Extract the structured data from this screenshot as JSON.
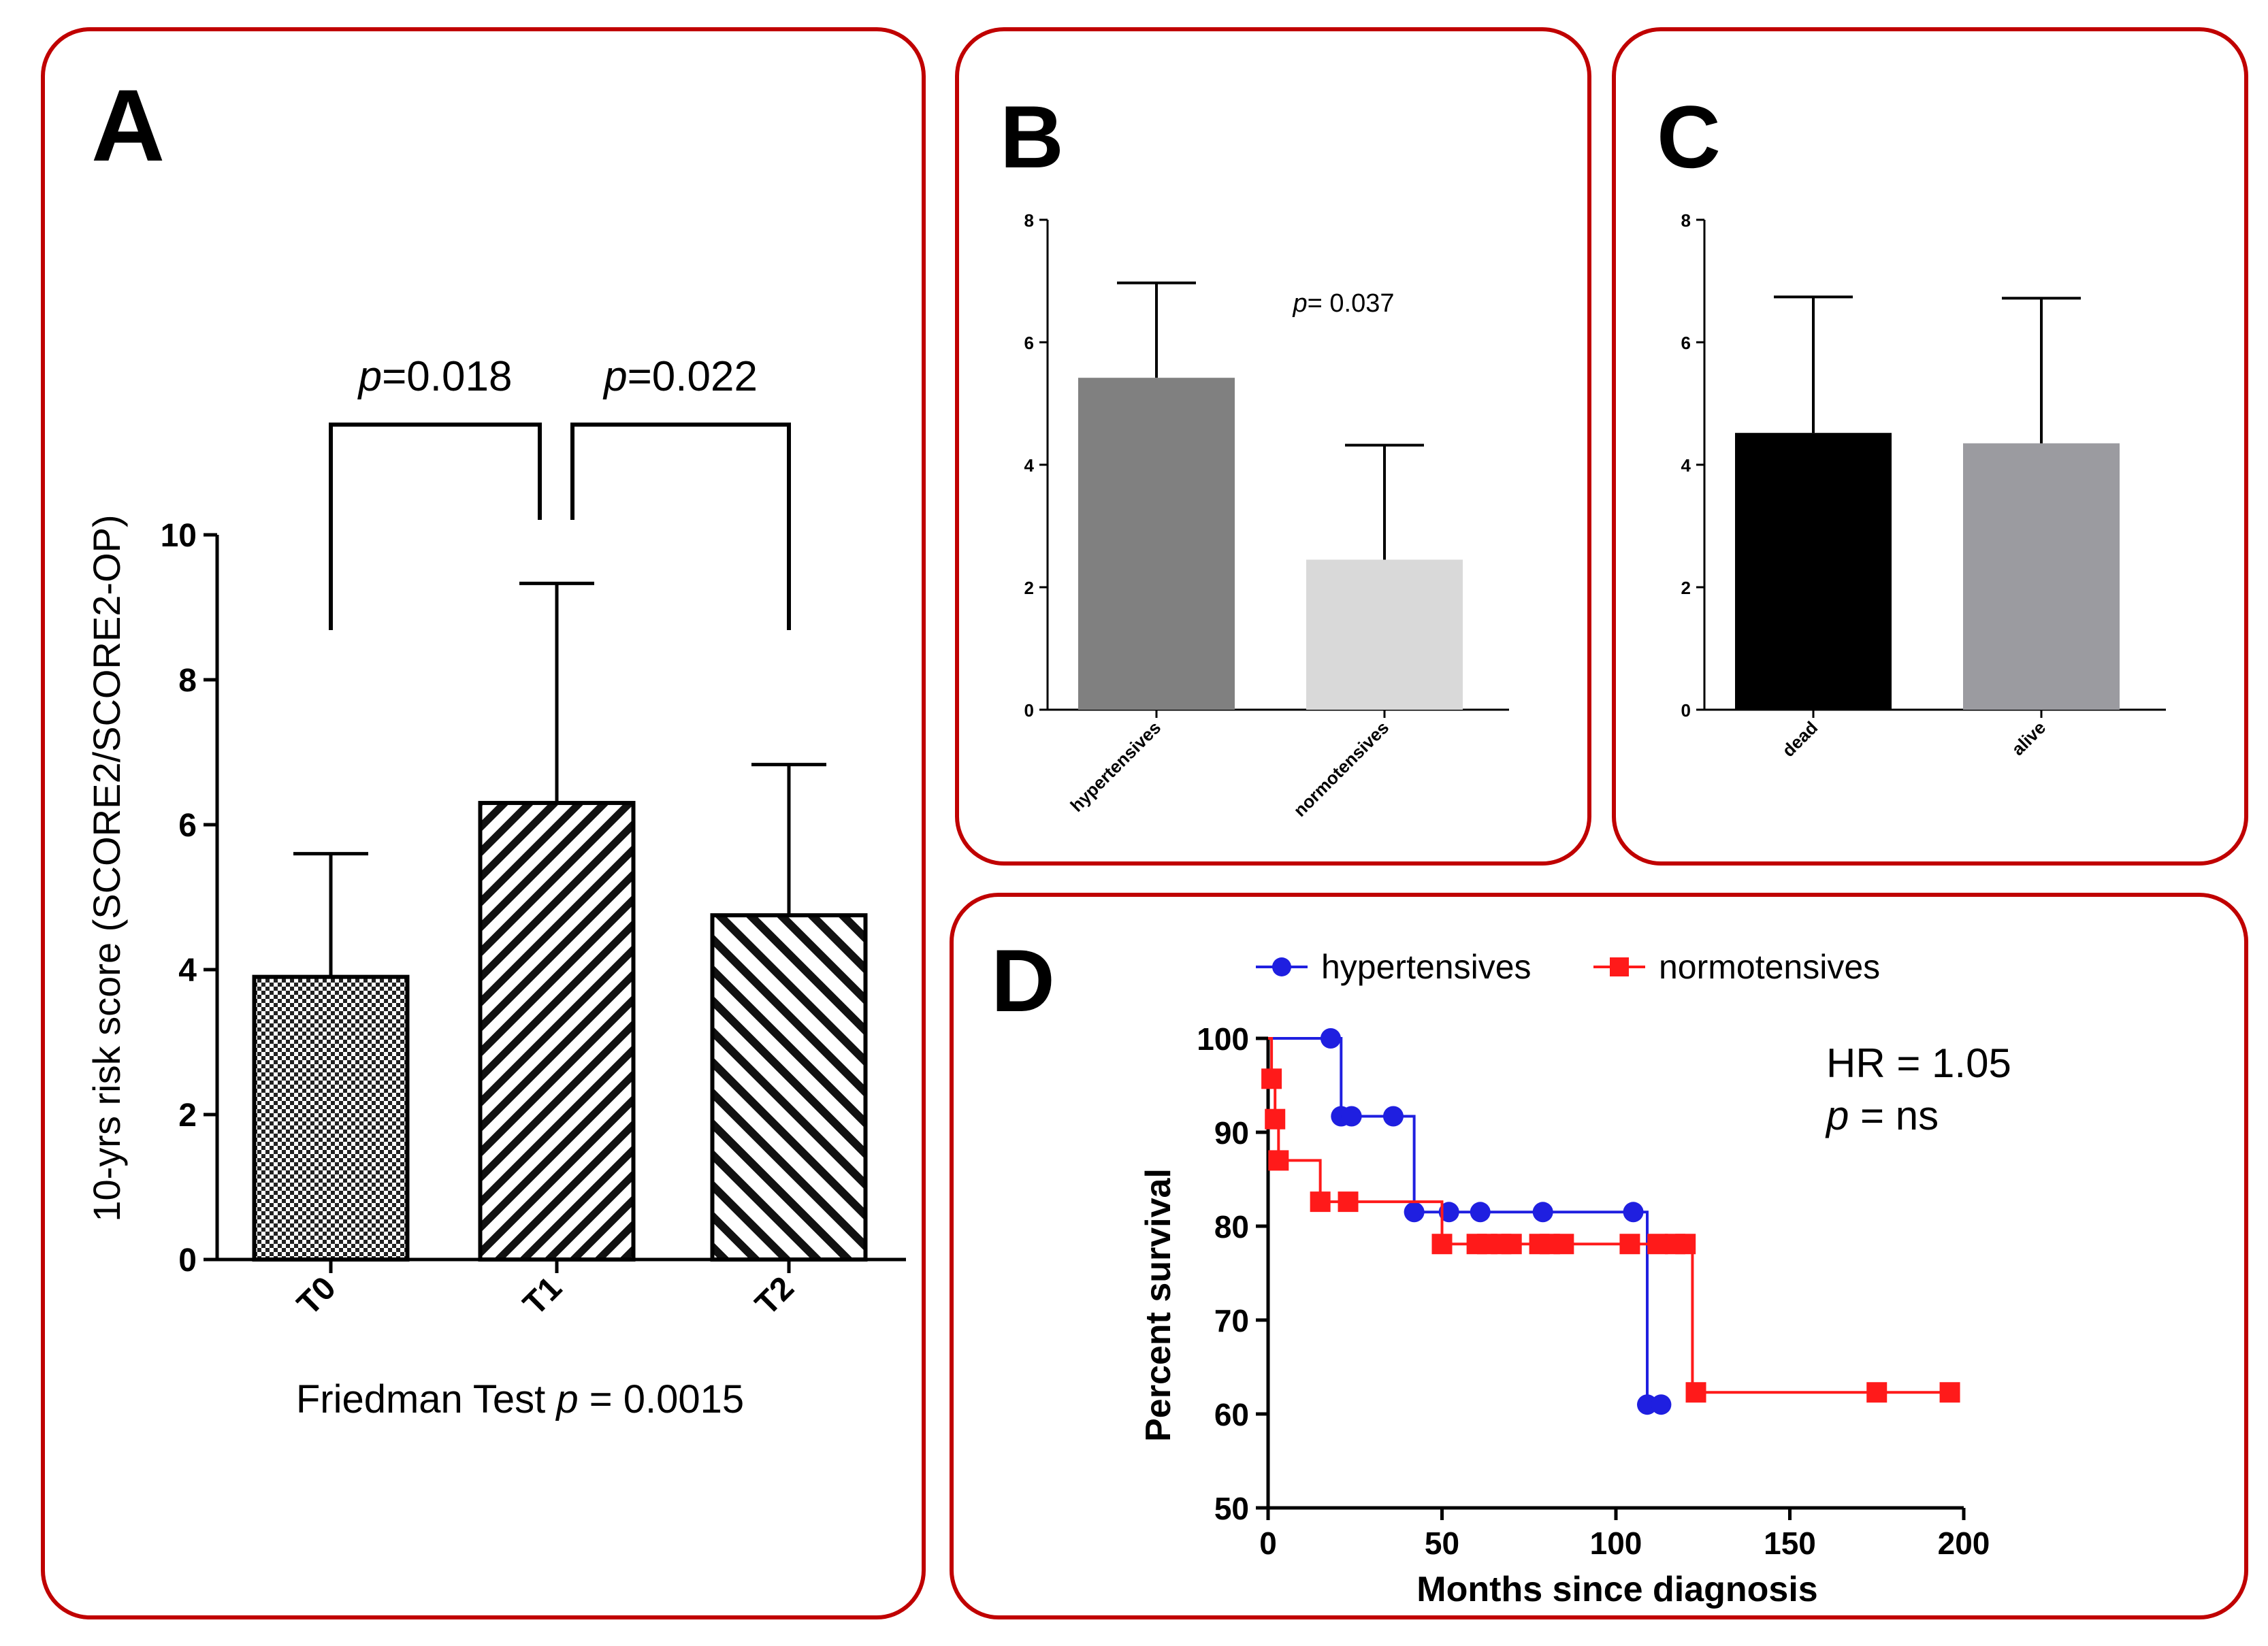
{
  "panels": {
    "a": {
      "letter": "A",
      "chart_data": {
        "type": "bar",
        "categories": [
          "T0",
          "T1",
          "T2"
        ],
        "values": [
          3.9,
          6.3,
          4.75
        ],
        "errors_upper": [
          5.6,
          9.33,
          6.83
        ],
        "ylabel": "10-yrs risk score (SCORE2/SCORE2-OP)",
        "ylim": [
          0,
          10
        ],
        "yticks": [
          "0",
          "2",
          "4",
          "6",
          "8",
          "10"
        ],
        "patterns": [
          "checker",
          "diagonal-dense",
          "diagonal"
        ],
        "comparisons": [
          {
            "from": "T0",
            "to": "T1",
            "p_italic": "p",
            "p_text": "=0.018"
          },
          {
            "from": "T1",
            "to": "T2",
            "p_italic": "p",
            "p_text": "=0.022"
          }
        ],
        "footnote_prefix": "Friedman Test ",
        "footnote_italic": "p",
        "footnote_suffix": " = 0.0015"
      }
    },
    "b": {
      "letter": "B",
      "chart_data": {
        "type": "bar",
        "categories": [
          "hypertensives",
          "normotensives"
        ],
        "values": [
          5.42,
          2.45
        ],
        "errors_upper": [
          6.97,
          4.32
        ],
        "ylim": [
          0,
          8
        ],
        "yticks": [
          "0",
          "2",
          "4",
          "6",
          "8"
        ],
        "colors": [
          "#808080",
          "#d9d9d9"
        ],
        "annotation_italic": "p",
        "annotation_text": "= 0.037"
      }
    },
    "c": {
      "letter": "C",
      "chart_data": {
        "type": "bar",
        "categories": [
          "dead",
          "alive"
        ],
        "values": [
          4.52,
          4.35
        ],
        "errors_upper": [
          6.74,
          6.72
        ],
        "ylim": [
          0,
          8
        ],
        "yticks": [
          "0",
          "2",
          "4",
          "6",
          "8"
        ],
        "colors": [
          "#000000",
          "#9b9ba0"
        ]
      }
    },
    "d": {
      "letter": "D",
      "chart_data": {
        "type": "line",
        "xlabel": "Months since diagnosis",
        "ylabel": "Percent survival",
        "xlim": [
          0,
          200
        ],
        "ylim": [
          50,
          100
        ],
        "xticks": [
          "0",
          "50",
          "100",
          "150",
          "200"
        ],
        "yticks": [
          "50",
          "60",
          "70",
          "80",
          "90",
          "100"
        ],
        "series": [
          {
            "name": "hypertensives",
            "color": "#1f1fe0",
            "marker": "circle",
            "steps": [
              [
                0,
                100
              ],
              [
                21,
                91.7
              ],
              [
                42,
                81.5
              ],
              [
                109,
                61.0
              ],
              [
                113,
                61.0
              ]
            ],
            "censored": [
              [
                18,
                100
              ],
              [
                21,
                91.7
              ],
              [
                24,
                91.7
              ],
              [
                36,
                91.7
              ],
              [
                42,
                81.5
              ],
              [
                52,
                81.5
              ],
              [
                61,
                81.5
              ],
              [
                79,
                81.5
              ],
              [
                105,
                81.5
              ],
              [
                109,
                61.0
              ],
              [
                113,
                61.0
              ]
            ]
          },
          {
            "name": "normotensives",
            "color": "#ff1a1a",
            "marker": "square",
            "steps": [
              [
                0,
                100
              ],
              [
                1,
                95.7
              ],
              [
                2,
                91.4
              ],
              [
                3,
                87.0
              ],
              [
                15,
                82.6
              ],
              [
                50,
                78.1
              ],
              [
                122,
                62.3
              ],
              [
                196,
                62.3
              ]
            ],
            "censored": [
              [
                1,
                95.7
              ],
              [
                2,
                91.4
              ],
              [
                3,
                87.0
              ],
              [
                15,
                82.6
              ],
              [
                23,
                82.6
              ],
              [
                50,
                78.1
              ],
              [
                60,
                78.1
              ],
              [
                63,
                78.1
              ],
              [
                67,
                78.1
              ],
              [
                70,
                78.1
              ],
              [
                78,
                78.1
              ],
              [
                81,
                78.1
              ],
              [
                85,
                78.1
              ],
              [
                104,
                78.1
              ],
              [
                112,
                78.1
              ],
              [
                117,
                78.1
              ],
              [
                120,
                78.1
              ],
              [
                123,
                62.3
              ],
              [
                175,
                62.3
              ],
              [
                196,
                62.3
              ]
            ]
          }
        ],
        "hr_text": "HR = 1.05",
        "p_italic": "p",
        "p_text": " = ns"
      }
    }
  }
}
